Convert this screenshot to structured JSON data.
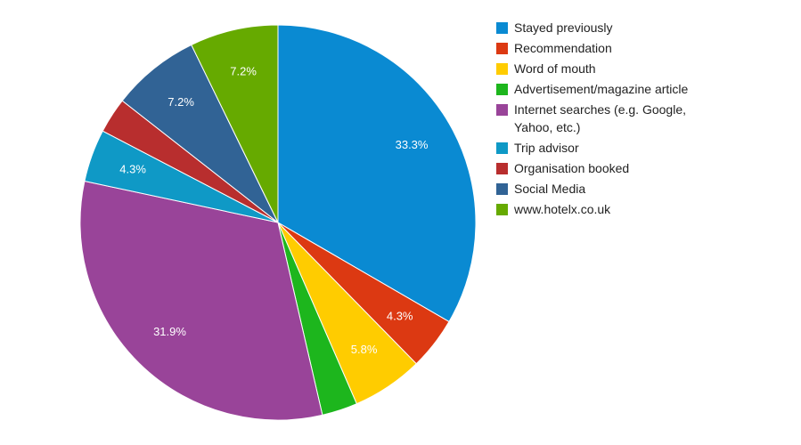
{
  "chart_data": {
    "type": "pie",
    "title": "",
    "legend_position": "right",
    "slices": [
      {
        "label": "Stayed previously",
        "value": 33.3,
        "value_label": "33.3%",
        "color": "#0a8ad2"
      },
      {
        "label": "Recommendation",
        "value": 4.3,
        "value_label": "4.3%",
        "color": "#dc3912"
      },
      {
        "label": "Word of mouth",
        "value": 5.8,
        "value_label": "5.8%",
        "color": "#ffcc00"
      },
      {
        "label": "Advertisement/magazine article",
        "value": 2.9,
        "value_label": "",
        "color": "#1db61d"
      },
      {
        "label": "Internet searches (e.g. Google, Yahoo, etc.)",
        "legend_lines": [
          "Internet searches (e.g. Google,",
          "Yahoo, etc.)"
        ],
        "value": 31.9,
        "value_label": "31.9%",
        "color": "#994499"
      },
      {
        "label": "Trip advisor",
        "value": 4.3,
        "value_label": "4.3%",
        "color": "#0f99c6"
      },
      {
        "label": "Organisation booked",
        "value": 2.9,
        "value_label": "",
        "color": "#b82e2e"
      },
      {
        "label": "Social Media",
        "value": 7.2,
        "value_label": "7.2%",
        "color": "#316395"
      },
      {
        "label": "www.hotelx.co.uk",
        "value": 7.2,
        "value_label": "7.2%",
        "color": "#66aa00"
      }
    ]
  }
}
